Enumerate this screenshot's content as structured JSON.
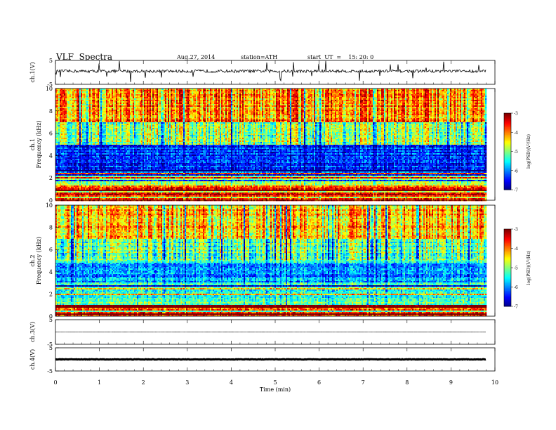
{
  "header": {
    "title": "VLF  Spectra",
    "date": "Aug.27, 2014",
    "station": "station=ATH",
    "start": "start  UT  =    15: 20: 0"
  },
  "chart_data": [
    {
      "type": "line",
      "name": "ch1-waveform",
      "ylabel": "ch.1(V)",
      "ylim": [
        -5,
        5
      ],
      "yticks": [
        "5",
        "-5"
      ],
      "baseline": 0.5,
      "noise": 0.6,
      "spikes": 1.8,
      "spike_rate": 0.04
    },
    {
      "type": "heatmap",
      "name": "ch1-spectrogram",
      "ylabel": "ch.1\nFrequency  (kHz)",
      "ylim": [
        0,
        10
      ],
      "yticks": [
        "0",
        "2",
        "4",
        "6",
        "8",
        "10"
      ],
      "colorbar": {
        "label": "log(PSD)(V²/Hz)",
        "ticks": [
          "-3",
          "-4",
          "-5",
          "-6",
          "-7"
        ],
        "range": [
          -7,
          -3
        ]
      },
      "bands_khz": [
        {
          "from": 0,
          "to": 1.2,
          "level": -3.5
        },
        {
          "from": 1.2,
          "to": 2.5,
          "level": -4.8
        },
        {
          "from": 2.5,
          "to": 5.0,
          "level": -6.3
        },
        {
          "from": 5.0,
          "to": 7.0,
          "level": -5.0
        },
        {
          "from": 7.0,
          "to": 10.0,
          "level": -4.0
        }
      ]
    },
    {
      "type": "heatmap",
      "name": "ch2-spectrogram",
      "ylabel": "ch.2\nFrequency  (kHz)",
      "ylim": [
        0,
        10
      ],
      "yticks": [
        "0",
        "2",
        "4",
        "6",
        "8",
        "10"
      ],
      "colorbar": {
        "label": "log(PSD)(V²/Hz)",
        "ticks": [
          "-3",
          "-4",
          "-5",
          "-6",
          "-7"
        ],
        "range": [
          -7,
          -3
        ]
      },
      "bands_khz": [
        {
          "from": 0,
          "to": 1.2,
          "level": -3.8
        },
        {
          "from": 1.2,
          "to": 3.0,
          "level": -5.2
        },
        {
          "from": 3.0,
          "to": 4.8,
          "level": -5.9
        },
        {
          "from": 4.8,
          "to": 7.0,
          "level": -5.1
        },
        {
          "from": 7.0,
          "to": 10.0,
          "level": -4.2
        }
      ]
    },
    {
      "type": "line",
      "name": "ch3-waveform",
      "ylabel": "ch.3(V)",
      "ylim": [
        -5,
        5
      ],
      "yticks": [
        "5",
        "-5"
      ],
      "baseline": 0,
      "noise": 0.05
    },
    {
      "type": "line",
      "name": "ch4-waveform",
      "ylabel": "ch.4(V)",
      "ylim": [
        -5,
        5
      ],
      "yticks": [
        "5",
        "-5"
      ],
      "baseline": 0,
      "noise": 0.1
    }
  ],
  "xaxis": {
    "label": "Time  (min)",
    "range": [
      0,
      10
    ],
    "data_end": 9.8,
    "ticks": [
      "0",
      "1",
      "2",
      "3",
      "4",
      "5",
      "6",
      "7",
      "8",
      "9",
      "10"
    ]
  }
}
